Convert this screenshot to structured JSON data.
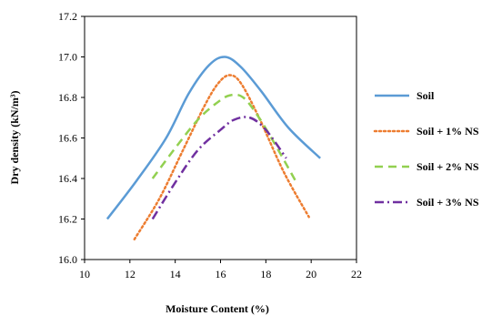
{
  "chart_data": {
    "type": "line",
    "xlabel": "Moisture Content (%)",
    "ylabel": "Dry density (kN/m³)",
    "xlim": [
      10,
      22
    ],
    "ylim": [
      16.0,
      17.2
    ],
    "x_ticks": [
      "10",
      "12",
      "14",
      "16",
      "18",
      "20",
      "22"
    ],
    "y_ticks": [
      "16.0",
      "16.2",
      "16.4",
      "16.6",
      "16.8",
      "17.0",
      "17.2"
    ],
    "grid": false,
    "legend_position": "right",
    "series": [
      {
        "name": "Soil",
        "color": "#5b9bd5",
        "dash": "solid",
        "x": [
          11.0,
          12.3,
          13.6,
          14.6,
          15.5,
          16.2,
          16.9,
          17.8,
          19.0,
          20.4
        ],
        "y": [
          16.2,
          16.39,
          16.6,
          16.82,
          16.96,
          17.0,
          16.95,
          16.83,
          16.65,
          16.5
        ]
      },
      {
        "name": "Soil + 1% NS",
        "color": "#ed7d31",
        "dash": "dotted",
        "x": [
          12.2,
          13.3,
          14.3,
          15.3,
          15.9,
          16.4,
          16.9,
          17.7,
          18.8,
          19.9
        ],
        "y": [
          16.1,
          16.3,
          16.53,
          16.76,
          16.87,
          16.91,
          16.87,
          16.7,
          16.43,
          16.21
        ]
      },
      {
        "name": "Soil + 2% NS",
        "color": "#92d050",
        "dash": "dashed",
        "x": [
          13.0,
          14.0,
          15.0,
          15.8,
          16.4,
          17.0,
          17.7,
          18.5,
          19.3
        ],
        "y": [
          16.4,
          16.55,
          16.69,
          16.77,
          16.81,
          16.8,
          16.7,
          16.55,
          16.39
        ]
      },
      {
        "name": "Soil + 3% NS",
        "color": "#7030a0",
        "dash": "dashdot",
        "x": [
          13.0,
          14.0,
          15.0,
          16.0,
          16.6,
          17.3,
          18.0,
          18.9
        ],
        "y": [
          16.2,
          16.38,
          16.54,
          16.64,
          16.69,
          16.7,
          16.64,
          16.5
        ]
      }
    ]
  }
}
